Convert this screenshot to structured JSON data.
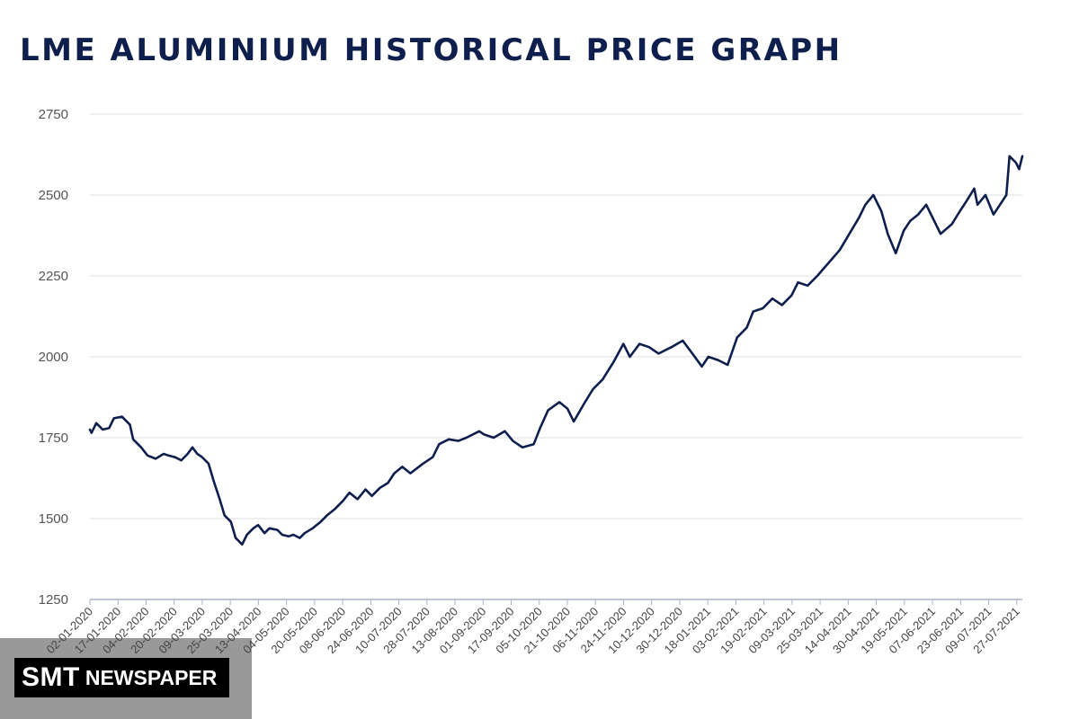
{
  "header": {
    "title": "LME ALUMINIUM HISTORICAL PRICE GRAPH"
  },
  "watermark": {
    "brand": "SMT",
    "word": "NEWSPAPER"
  },
  "colors": {
    "line": "#0f1f4d",
    "grid": "#dddddd",
    "axis": "#aab4c8",
    "title": "#0f1f4d"
  },
  "chart_data": {
    "type": "line",
    "title": "LME ALUMINIUM HISTORICAL PRICE GRAPH",
    "xlabel": "",
    "ylabel": "",
    "ylim": [
      1250,
      2750
    ],
    "yticks": [
      1250,
      1500,
      1750,
      2000,
      2250,
      2500,
      2750
    ],
    "xlim": [
      "2020-01-02",
      "2021-08-06"
    ],
    "xtick_labels": [
      "02-01-2020",
      "17-01-2020",
      "04-02-2020",
      "20-02-2020",
      "09-03-2020",
      "25-03-2020",
      "13-04-2020",
      "04-05-2020",
      "20-05-2020",
      "08-06-2020",
      "24-06-2020",
      "10-07-2020",
      "28-07-2020",
      "13-08-2020",
      "01-09-2020",
      "17-09-2020",
      "05-10-2020",
      "21-10-2020",
      "06-11-2020",
      "24-11-2020",
      "10-12-2020",
      "30-12-2020",
      "18-01-2021",
      "03-02-2021",
      "19-02-2021",
      "09-03-2021",
      "25-03-2021",
      "14-04-2021",
      "30-04-2021",
      "19-05-2021",
      "07-06-2021",
      "23-06-2021",
      "09-07-2021",
      "27-07-2021"
    ],
    "grid": true,
    "legend": "none",
    "series": [
      {
        "x": [
          "2020-01-02",
          "2020-01-03",
          "2020-01-06",
          "2020-01-08",
          "2020-01-10",
          "2020-01-14",
          "2020-01-17",
          "2020-01-22",
          "2020-01-27",
          "2020-01-29",
          "2020-02-03",
          "2020-02-07",
          "2020-02-12",
          "2020-02-17",
          "2020-02-20",
          "2020-02-24",
          "2020-02-28",
          "2020-03-03",
          "2020-03-06",
          "2020-03-09",
          "2020-03-12",
          "2020-03-16",
          "2020-03-19",
          "2020-03-23",
          "2020-03-26",
          "2020-03-30",
          "2020-04-02",
          "2020-04-06",
          "2020-04-09",
          "2020-04-13",
          "2020-04-16",
          "2020-04-20",
          "2020-04-23",
          "2020-04-28",
          "2020-05-01",
          "2020-05-05",
          "2020-05-08",
          "2020-05-12",
          "2020-05-15",
          "2020-05-20",
          "2020-05-25",
          "2020-05-29",
          "2020-06-03",
          "2020-06-08",
          "2020-06-12",
          "2020-06-17",
          "2020-06-22",
          "2020-06-26",
          "2020-07-01",
          "2020-07-06",
          "2020-07-10",
          "2020-07-15",
          "2020-07-20",
          "2020-07-24",
          "2020-07-28",
          "2020-08-03",
          "2020-08-07",
          "2020-08-13",
          "2020-08-19",
          "2020-08-24",
          "2020-09-01",
          "2020-09-04",
          "2020-09-10",
          "2020-09-17",
          "2020-09-22",
          "2020-09-28",
          "2020-10-05",
          "2020-10-09",
          "2020-10-14",
          "2020-10-21",
          "2020-10-26",
          "2020-10-30",
          "2020-11-06",
          "2020-11-11",
          "2020-11-17",
          "2020-11-24",
          "2020-11-30",
          "2020-12-04",
          "2020-12-10",
          "2020-12-16",
          "2020-12-22",
          "2020-12-30",
          "2021-01-06",
          "2021-01-12",
          "2021-01-18",
          "2021-01-22",
          "2021-01-28",
          "2021-02-03",
          "2021-02-09",
          "2021-02-15",
          "2021-02-19",
          "2021-02-25",
          "2021-03-03",
          "2021-03-09",
          "2021-03-15",
          "2021-03-19",
          "2021-03-25",
          "2021-03-31",
          "2021-04-07",
          "2021-04-14",
          "2021-04-20",
          "2021-04-26",
          "2021-04-30",
          "2021-05-05",
          "2021-05-10",
          "2021-05-14",
          "2021-05-19",
          "2021-05-24",
          "2021-05-28",
          "2021-06-02",
          "2021-06-07",
          "2021-06-11",
          "2021-06-16",
          "2021-06-23",
          "2021-06-28",
          "2021-07-02",
          "2021-07-07",
          "2021-07-09",
          "2021-07-14",
          "2021-07-19",
          "2021-07-23",
          "2021-07-27",
          "2021-07-29",
          "2021-08-02",
          "2021-08-04",
          "2021-08-06"
        ],
        "y": [
          1775,
          1765,
          1795,
          1785,
          1775,
          1780,
          1810,
          1815,
          1790,
          1745,
          1720,
          1695,
          1685,
          1700,
          1695,
          1690,
          1680,
          1700,
          1720,
          1700,
          1690,
          1670,
          1620,
          1560,
          1510,
          1490,
          1440,
          1420,
          1450,
          1470,
          1480,
          1455,
          1470,
          1465,
          1450,
          1445,
          1450,
          1440,
          1455,
          1470,
          1490,
          1510,
          1530,
          1555,
          1580,
          1560,
          1590,
          1570,
          1595,
          1610,
          1640,
          1660,
          1640,
          1655,
          1670,
          1690,
          1730,
          1745,
          1740,
          1750,
          1770,
          1760,
          1750,
          1770,
          1740,
          1720,
          1730,
          1780,
          1835,
          1860,
          1840,
          1800,
          1860,
          1900,
          1930,
          1985,
          2040,
          2000,
          2040,
          2030,
          2010,
          2030,
          2050,
          2010,
          1970,
          2000,
          1990,
          1975,
          2060,
          2090,
          2140,
          2150,
          2180,
          2160,
          2190,
          2230,
          2220,
          2250,
          2290,
          2330,
          2380,
          2430,
          2470,
          2500,
          2450,
          2380,
          2320,
          2390,
          2420,
          2440,
          2470,
          2430,
          2380,
          2410,
          2450,
          2480,
          2520,
          2470,
          2500,
          2440,
          2470,
          2500,
          2620,
          2600,
          2580,
          2620
        ]
      }
    ]
  }
}
